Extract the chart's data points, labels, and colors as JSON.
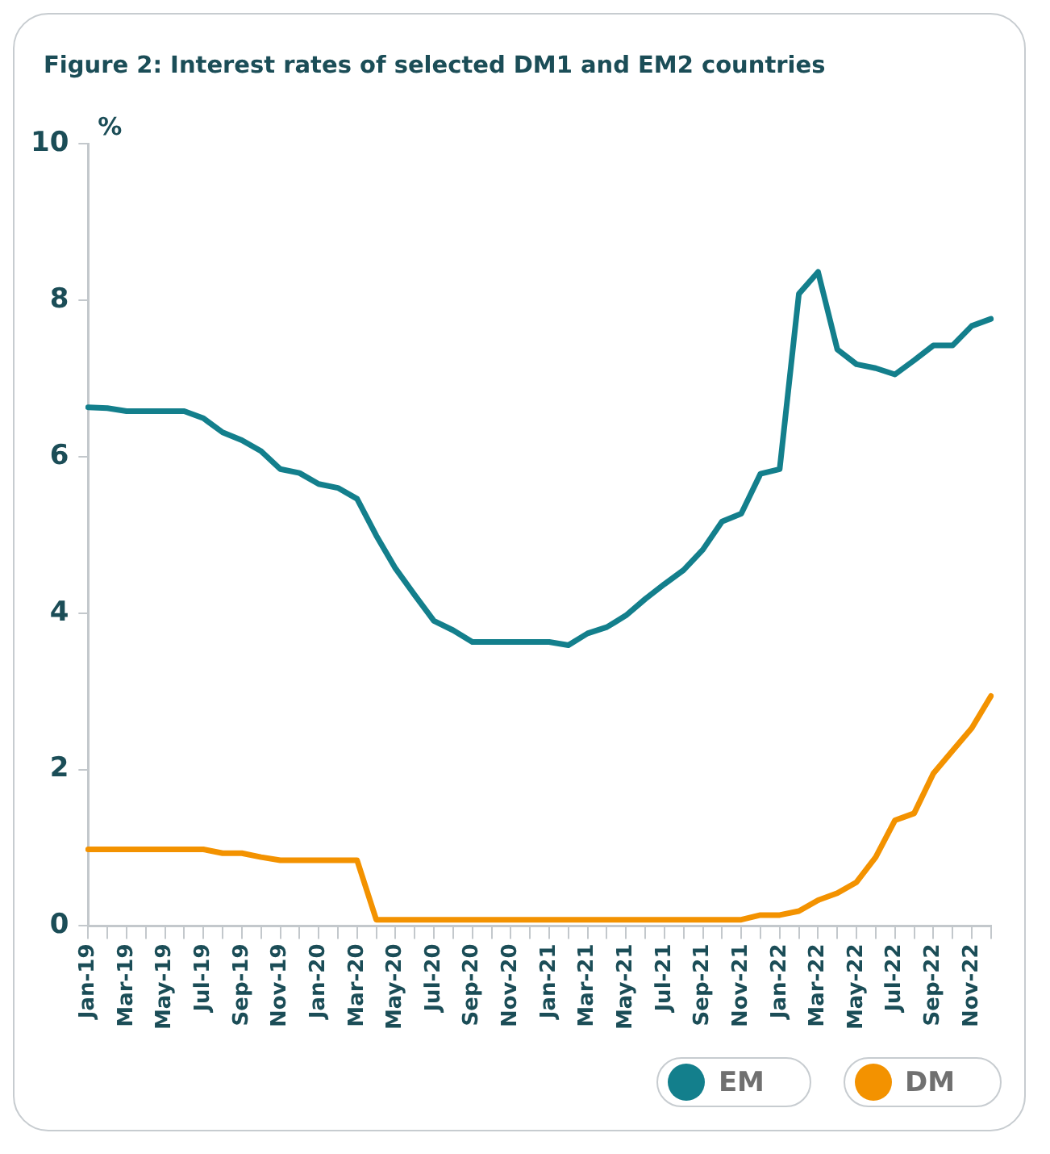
{
  "chart_data": {
    "type": "line",
    "title": "Figure 2: Interest rates of selected DM1 and EM2 countries",
    "ylabel": "%",
    "categories": [
      "Jan-19",
      null,
      "Mar-19",
      null,
      "May-19",
      null,
      "Jul-19",
      null,
      "Sep-19",
      null,
      "Nov-19",
      null,
      "Jan-20",
      null,
      "Mar-20",
      null,
      "May-20",
      null,
      "Jul-20",
      null,
      "Sep-20",
      null,
      "Nov-20",
      null,
      "Jan-21",
      null,
      "Mar-21",
      null,
      "May-21",
      null,
      "Jul-21",
      null,
      "Sep-21",
      null,
      "Nov-21",
      null,
      "Jan-22",
      null,
      "Mar-22",
      null,
      "May-22",
      null,
      "Jul-22",
      null,
      "Sep-22",
      null,
      "Nov-22",
      null
    ],
    "series": [
      {
        "name": "EM",
        "color": "#137f8c",
        "values": [
          6.63,
          6.62,
          6.58,
          6.58,
          6.58,
          6.58,
          6.49,
          6.31,
          6.21,
          6.07,
          5.84,
          5.79,
          5.65,
          5.6,
          5.46,
          4.99,
          4.57,
          4.23,
          3.9,
          3.78,
          3.63,
          3.63,
          3.63,
          3.63,
          3.63,
          3.59,
          3.74,
          3.82,
          3.97,
          4.18,
          4.37,
          4.55,
          4.81,
          5.17,
          5.27,
          5.78,
          5.84,
          8.08,
          8.36,
          7.37,
          7.18,
          7.13,
          7.05,
          7.23,
          7.42,
          7.42,
          7.67,
          7.76
        ]
      },
      {
        "name": "DM",
        "color": "#f39200",
        "values": [
          0.98,
          0.98,
          0.98,
          0.98,
          0.98,
          0.98,
          0.98,
          0.93,
          0.93,
          0.88,
          0.84,
          0.84,
          0.84,
          0.84,
          0.84,
          0.08,
          0.08,
          0.08,
          0.08,
          0.08,
          0.08,
          0.08,
          0.08,
          0.08,
          0.08,
          0.08,
          0.08,
          0.08,
          0.08,
          0.08,
          0.08,
          0.08,
          0.08,
          0.08,
          0.08,
          0.14,
          0.14,
          0.19,
          0.33,
          0.42,
          0.56,
          0.88,
          1.35,
          1.44,
          1.95,
          2.24,
          2.53,
          2.94
        ]
      }
    ],
    "ylim": [
      0,
      10
    ],
    "yticks": [
      0,
      2,
      4,
      6,
      8,
      10
    ],
    "grid": false,
    "legend": "bottom right",
    "marker": "none",
    "line_style": "solid"
  }
}
